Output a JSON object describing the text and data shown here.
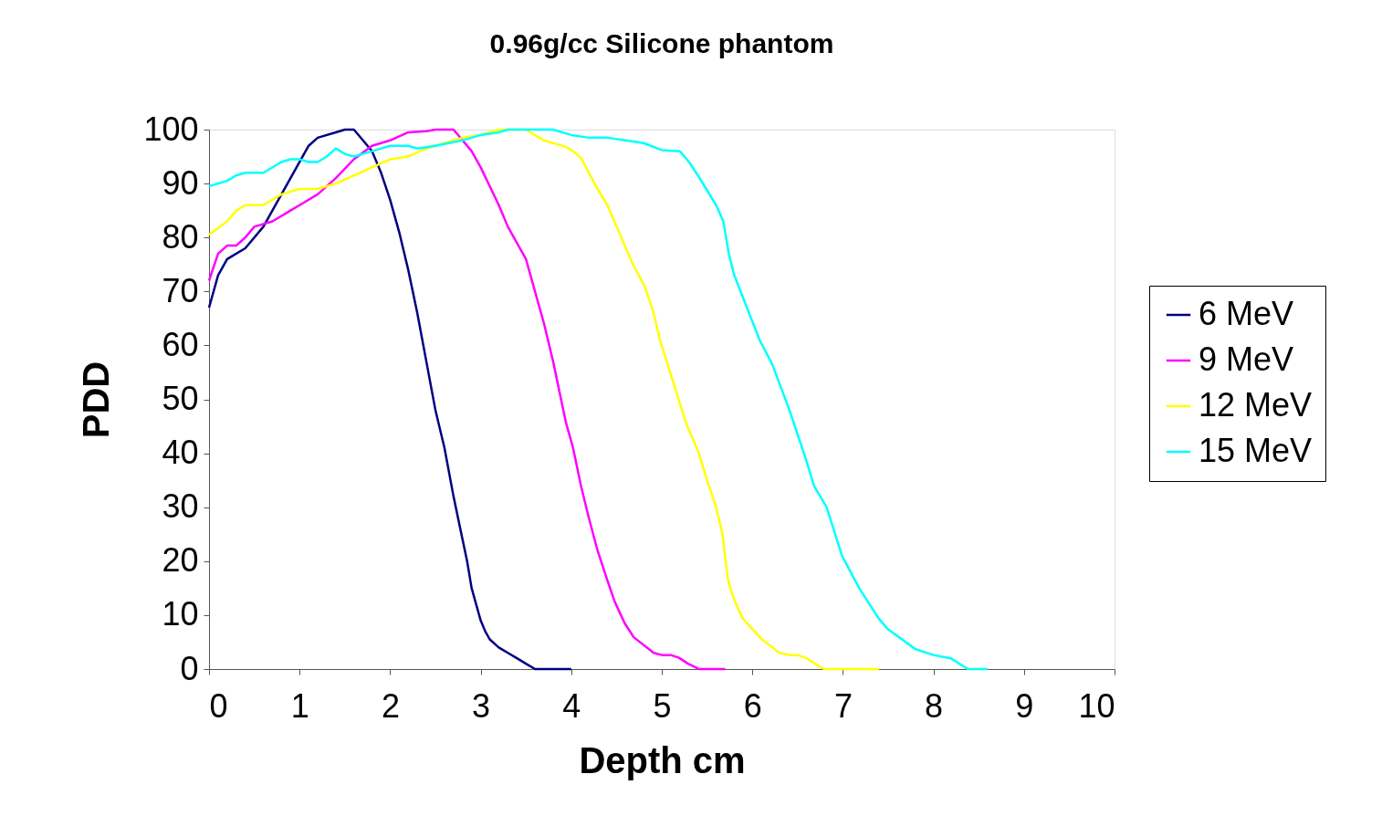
{
  "chart_data": {
    "type": "line",
    "title": "0.96g/cc Silicone phantom",
    "xlabel": "Depth cm",
    "ylabel": "PDD",
    "xlim": [
      0,
      10
    ],
    "xticks": [
      0,
      1,
      2,
      3,
      4,
      5,
      6,
      7,
      8,
      9,
      10
    ],
    "ylim": [
      0,
      100
    ],
    "yticks": [
      0,
      10,
      20,
      30,
      40,
      50,
      60,
      70,
      80,
      90,
      100
    ],
    "grid": false,
    "legend": "right",
    "marker": "none",
    "line_style": "solid",
    "series": [
      {
        "name": "6 MeV",
        "color": "#000080",
        "x": [
          0,
          0.1,
          0.2,
          0.4,
          0.6,
          0.8,
          1.0,
          1.1,
          1.2,
          1.4,
          1.5,
          1.6,
          1.7,
          1.8,
          1.9,
          2.0,
          2.1,
          2.2,
          2.3,
          2.4,
          2.5,
          2.6,
          2.7,
          2.8,
          2.85,
          2.9,
          2.95,
          3.0,
          3.05,
          3.1,
          3.2,
          3.3,
          3.4,
          3.5,
          3.6,
          4.0
        ],
        "values": [
          67,
          73,
          76,
          78,
          82,
          88,
          94,
          97,
          98.5,
          99.5,
          100,
          100,
          98,
          96,
          92,
          87,
          81,
          74,
          66,
          57,
          48,
          41,
          32,
          24,
          20,
          15,
          12,
          9,
          7,
          5.5,
          4,
          3,
          2,
          1,
          0,
          0
        ]
      },
      {
        "name": "9 MeV",
        "color": "#ff00ff",
        "x": [
          0,
          0.1,
          0.2,
          0.3,
          0.4,
          0.5,
          0.7,
          0.9,
          1.0,
          1.2,
          1.4,
          1.6,
          1.8,
          2.0,
          2.2,
          2.4,
          2.5,
          2.7,
          2.8,
          2.9,
          3.0,
          3.1,
          3.2,
          3.3,
          3.5,
          3.6,
          3.7,
          3.8,
          3.94,
          4.02,
          4.11,
          4.19,
          4.29,
          4.4,
          4.48,
          4.59,
          4.69,
          4.91,
          5.0,
          5.1,
          5.19,
          5.29,
          5.41,
          5.7
        ],
        "values": [
          72,
          77,
          78.5,
          78.5,
          80,
          82,
          83,
          85,
          86,
          88,
          91,
          94.5,
          97,
          98,
          99.5,
          99.7,
          100,
          100,
          98,
          96,
          93,
          89.5,
          86,
          82,
          76,
          70,
          64,
          57,
          45.8,
          41,
          33.8,
          28.3,
          22,
          16.4,
          12.5,
          8.5,
          5.9,
          3,
          2.6,
          2.6,
          2.1,
          1,
          0,
          0
        ]
      },
      {
        "name": "12 MeV",
        "color": "#ffff00",
        "x": [
          0,
          0.2,
          0.3,
          0.4,
          0.6,
          0.8,
          1.0,
          1.2,
          1.4,
          1.6,
          1.8,
          2.0,
          2.2,
          2.4,
          2.6,
          2.8,
          3.0,
          3.2,
          3.4,
          3.5,
          3.7,
          3.94,
          4.02,
          4.11,
          4.29,
          4.4,
          4.68,
          4.81,
          4.91,
          4.98,
          5.27,
          5.41,
          5.5,
          5.6,
          5.67,
          5.73,
          5.8,
          5.89,
          5.99,
          6.1,
          6.3,
          6.41,
          6.5,
          6.6,
          6.72,
          6.79,
          7.4
        ],
        "values": [
          80.5,
          83,
          85,
          86,
          86,
          88,
          89,
          89,
          90,
          91.5,
          93,
          94.5,
          95,
          96.5,
          97.5,
          98.5,
          99,
          100,
          100,
          100,
          98,
          96.8,
          96,
          94.7,
          89,
          86,
          75,
          71,
          66,
          61,
          45.5,
          40,
          35,
          30,
          25,
          16.6,
          12.8,
          9.5,
          7.6,
          5.6,
          3,
          2.6,
          2.6,
          2,
          0.7,
          0,
          0
        ]
      },
      {
        "name": "15 MeV",
        "color": "#00ffff",
        "x": [
          0,
          0.2,
          0.3,
          0.4,
          0.6,
          0.8,
          0.9,
          1.0,
          1.1,
          1.2,
          1.3,
          1.4,
          1.5,
          1.6,
          1.8,
          2.0,
          2.2,
          2.3,
          2.5,
          2.8,
          3.0,
          3.2,
          3.3,
          3.8,
          4.0,
          4.2,
          4.4,
          4.6,
          4.8,
          5.0,
          5.2,
          5.3,
          5.4,
          5.6,
          5.68,
          5.74,
          5.8,
          6.08,
          6.22,
          6.41,
          6.59,
          6.68,
          6.82,
          6.99,
          7.18,
          7.39,
          7.49,
          7.8,
          8.0,
          8.19,
          8.38,
          8.6
        ],
        "values": [
          89.5,
          90.5,
          91.5,
          92,
          92,
          94,
          94.5,
          94.5,
          94,
          94,
          95,
          96.5,
          95.5,
          95,
          96,
          97,
          97,
          96.5,
          97,
          98,
          99,
          99.5,
          100,
          100,
          99,
          98.5,
          98.5,
          98,
          97.5,
          96.2,
          96,
          94,
          91.5,
          86,
          83,
          77,
          73,
          61,
          56.5,
          48,
          39,
          34,
          30,
          21,
          15,
          9.5,
          7.5,
          3.7,
          2.6,
          2,
          0,
          0
        ]
      }
    ]
  }
}
